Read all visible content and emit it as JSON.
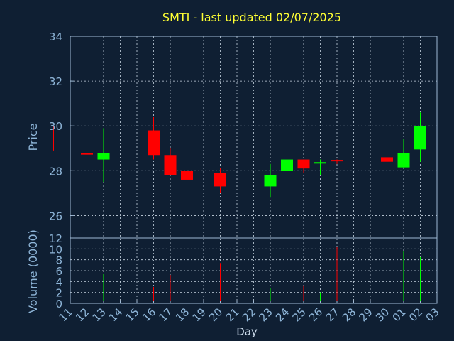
{
  "chart_data": {
    "type": "candlestick",
    "title": "SMTI - last updated 02/07/2025",
    "xlabel": "Day",
    "ylabel_price": "Price",
    "ylabel_volume": "Volume (0000)",
    "price_ylim": [
      25,
      34
    ],
    "price_yticks": [
      26,
      28,
      30,
      32,
      34
    ],
    "volume_ylim": [
      0,
      12
    ],
    "volume_yticks": [
      0,
      2,
      4,
      6,
      8,
      10,
      12
    ],
    "x_tick_labels": [
      "11",
      "12",
      "13",
      "14",
      "15",
      "16",
      "17",
      "18",
      "19",
      "20",
      "21",
      "22",
      "23",
      "24",
      "25",
      "26",
      "27",
      "28",
      "29",
      "30",
      "01",
      "02",
      "03"
    ],
    "grid": true,
    "colors": {
      "background": "#0f1f33",
      "frame": "#9fbad6",
      "grid": "#c9d6e3",
      "up": "#00ff00",
      "down": "#ff0000",
      "title": "#ffff33",
      "axis_label": "#8fb6d9"
    },
    "candles": [
      {
        "day": "10",
        "open": 29.9,
        "high": 30.0,
        "low": 28.9,
        "close": 28.9,
        "volume": 0.0
      },
      {
        "day": "12",
        "open": 28.75,
        "high": 29.7,
        "low": 28.6,
        "close": 28.7,
        "volume": 3.2
      },
      {
        "day": "13",
        "open": 28.5,
        "high": 29.9,
        "low": 27.5,
        "close": 28.8,
        "volume": 5.4
      },
      {
        "day": "16",
        "open": 29.8,
        "high": 30.4,
        "low": 28.5,
        "close": 28.7,
        "volume": 3.0
      },
      {
        "day": "17",
        "open": 28.7,
        "high": 29.0,
        "low": 27.8,
        "close": 27.8,
        "volume": 5.2
      },
      {
        "day": "18",
        "open": 28.0,
        "high": 28.1,
        "low": 27.5,
        "close": 27.6,
        "volume": 3.2
      },
      {
        "day": "20",
        "open": 27.9,
        "high": 28.1,
        "low": 27.0,
        "close": 27.3,
        "volume": 7.4
      },
      {
        "day": "23",
        "open": 27.3,
        "high": 28.3,
        "low": 26.8,
        "close": 27.8,
        "volume": 2.8
      },
      {
        "day": "24",
        "open": 28.0,
        "high": 28.5,
        "low": 27.6,
        "close": 28.5,
        "volume": 3.6
      },
      {
        "day": "25",
        "open": 28.5,
        "high": 28.5,
        "low": 27.9,
        "close": 28.1,
        "volume": 3.3
      },
      {
        "day": "26",
        "open": 28.3,
        "high": 28.5,
        "low": 27.8,
        "close": 28.35,
        "volume": 2.0
      },
      {
        "day": "27",
        "open": 28.45,
        "high": 28.5,
        "low": 28.3,
        "close": 28.4,
        "volume": 10.3
      },
      {
        "day": "30",
        "open": 28.6,
        "high": 29.0,
        "low": 28.3,
        "close": 28.4,
        "volume": 2.8
      },
      {
        "day": "01",
        "open": 28.15,
        "high": 29.4,
        "low": 28.1,
        "close": 28.8,
        "volume": 9.5
      },
      {
        "day": "02",
        "open": 28.95,
        "high": 30.6,
        "low": 28.4,
        "close": 30.0,
        "volume": 8.5
      }
    ]
  }
}
